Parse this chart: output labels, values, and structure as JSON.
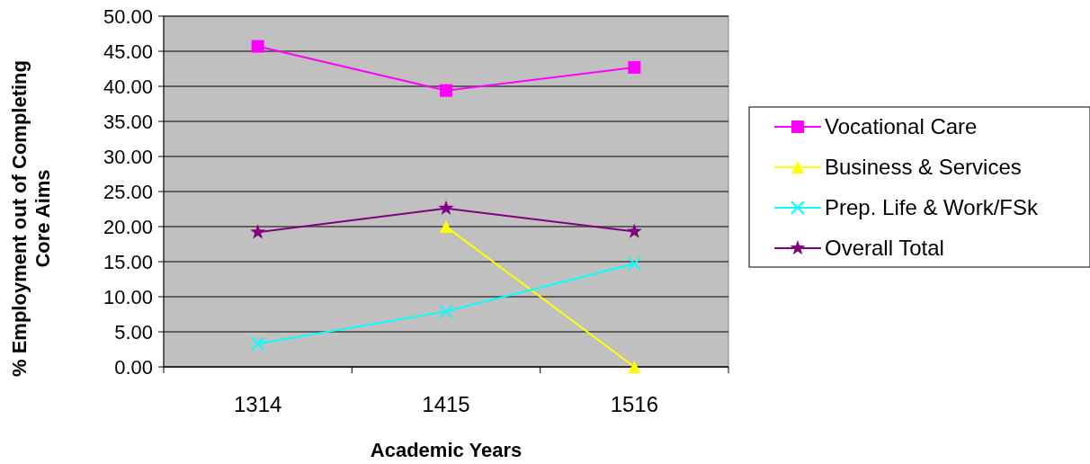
{
  "chart_data": {
    "type": "line",
    "xlabel": "Academic Years",
    "ylabel": "% Employment out of Completing Core Aims",
    "categories": [
      "1314",
      "1415",
      "1516"
    ],
    "ylim": [
      0,
      50
    ],
    "yticks": [
      {
        "value": 0,
        "label": "0.00"
      },
      {
        "value": 5,
        "label": "5.00"
      },
      {
        "value": 10,
        "label": "10.00"
      },
      {
        "value": 15,
        "label": "15.00"
      },
      {
        "value": 20,
        "label": "20.00"
      },
      {
        "value": 25,
        "label": "25.00"
      },
      {
        "value": 30,
        "label": "30.00"
      },
      {
        "value": 35,
        "label": "35.00"
      },
      {
        "value": 40,
        "label": "40.00"
      },
      {
        "value": 45,
        "label": "45.00"
      },
      {
        "value": 50,
        "label": "50.00"
      }
    ],
    "grid": "y",
    "legend": "right",
    "series": [
      {
        "name": "Vocational Care",
        "color": "#ff00ff",
        "marker": "square",
        "values": [
          45.7,
          39.4,
          42.7
        ]
      },
      {
        "name": "Business & Services",
        "color": "#ffff00",
        "marker": "triangle",
        "values": [
          null,
          20.0,
          0.0
        ]
      },
      {
        "name": "Prep. Life & Work/FSk",
        "color": "#00ffff",
        "marker": "cross",
        "values": [
          3.3,
          7.9,
          14.7
        ]
      },
      {
        "name": "Overall Total",
        "color": "#800080",
        "marker": "star",
        "values": [
          19.2,
          22.6,
          19.3
        ]
      }
    ]
  }
}
